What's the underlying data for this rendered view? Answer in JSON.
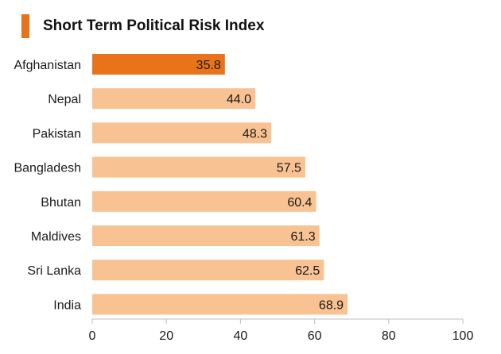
{
  "chart_data": {
    "type": "bar",
    "orientation": "horizontal",
    "title": "Short Term Political Risk Index",
    "categories": [
      "Afghanistan",
      "Nepal",
      "Pakistan",
      "Bangladesh",
      "Bhutan",
      "Maldives",
      "Sri Lanka",
      "India"
    ],
    "values": [
      35.8,
      44.0,
      48.3,
      57.5,
      60.4,
      61.3,
      62.5,
      68.9
    ],
    "value_labels": [
      "35.8",
      "44.0",
      "48.3",
      "57.5",
      "60.4",
      "61.3",
      "62.5",
      "68.9"
    ],
    "highlight_index": 0,
    "xlim": [
      0,
      100
    ],
    "x_ticks": [
      0,
      20,
      40,
      60,
      80,
      100
    ],
    "xlabel": "",
    "ylabel": "",
    "grid": false,
    "legend": "none"
  },
  "colors": {
    "accent": "#e8731a",
    "highlight_bar": "#e8731a",
    "bar": "#f8c293",
    "axis": "#bfbfbf",
    "text": "#1a1a1a"
  }
}
